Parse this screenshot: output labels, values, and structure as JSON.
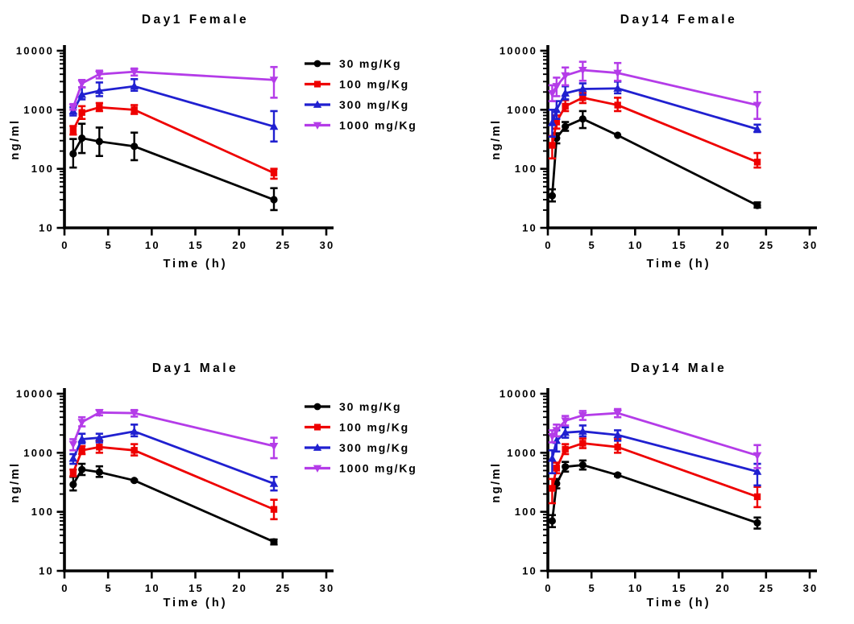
{
  "figure": {
    "background": "#ffffff",
    "axis_color": "#000000",
    "legend_labels": [
      "30 mg/Kg",
      "100 mg/Kg",
      "300 mg/Kg",
      "1000 mg/Kg"
    ],
    "series_colors": [
      "#000000",
      "#EE0000",
      "#2020D0",
      "#B43CE8"
    ]
  },
  "chart_data": [
    {
      "key": "day1-female",
      "type": "line",
      "title": "Day1 Female",
      "xlabel": "Time (h)",
      "ylabel": "ng/ml",
      "x_ticks": [
        0,
        5,
        10,
        15,
        20,
        25,
        30
      ],
      "y_ticks": [
        10,
        100,
        1000,
        10000
      ],
      "xlim": [
        0,
        30
      ],
      "ylim": [
        10,
        10000
      ],
      "y_scale": "log",
      "grid": false,
      "legend_visible": true,
      "legend_position": "right-of-plot",
      "series": [
        {
          "name": "30 mg/Kg",
          "color": "#000000",
          "marker": "circle",
          "x": [
            1,
            2,
            4,
            8,
            24
          ],
          "y": [
            180,
            330,
            290,
            240,
            30
          ],
          "err_lo": [
            105,
            185,
            165,
            140,
            20
          ],
          "err_hi": [
            320,
            580,
            500,
            410,
            47
          ]
        },
        {
          "name": "100 mg/Kg",
          "color": "#EE0000",
          "marker": "square",
          "x": [
            1,
            2,
            4,
            8,
            24
          ],
          "y": [
            450,
            900,
            1100,
            1000,
            85
          ],
          "err_lo": [
            380,
            700,
            950,
            850,
            68
          ],
          "err_hi": [
            530,
            1150,
            1300,
            1200,
            100
          ]
        },
        {
          "name": "300 mg/Kg",
          "color": "#2020D0",
          "marker": "triangle-up",
          "x": [
            1,
            2,
            4,
            8,
            24
          ],
          "y": [
            950,
            1800,
            2100,
            2500,
            520
          ],
          "err_lo": [
            800,
            1500,
            1700,
            2100,
            290
          ],
          "err_hi": [
            1100,
            2400,
            2900,
            3300,
            950
          ]
        },
        {
          "name": "1000 mg/Kg",
          "color": "#B43CE8",
          "marker": "triangle-down",
          "x": [
            1,
            2,
            4,
            8,
            24
          ],
          "y": [
            1100,
            2800,
            4000,
            4400,
            3200
          ],
          "err_lo": [
            1000,
            2400,
            3400,
            3800,
            1600
          ],
          "err_hi": [
            1250,
            3200,
            4600,
            5000,
            5300
          ]
        }
      ]
    },
    {
      "key": "day14-female",
      "type": "line",
      "title": "Day14 Female",
      "xlabel": "Time (h)",
      "ylabel": "ng/ml",
      "x_ticks": [
        0,
        5,
        10,
        15,
        20,
        25,
        30
      ],
      "y_ticks": [
        10,
        100,
        1000,
        10000
      ],
      "xlim": [
        0,
        30
      ],
      "ylim": [
        10,
        10000
      ],
      "y_scale": "log",
      "grid": false,
      "legend_visible": false,
      "legend_position": "none",
      "series": [
        {
          "name": "30 mg/Kg",
          "color": "#000000",
          "marker": "circle",
          "x": [
            0.5,
            1,
            2,
            4,
            8,
            24
          ],
          "y": [
            35,
            330,
            520,
            700,
            370,
            24
          ],
          "err_lo": [
            28,
            270,
            440,
            490,
            370,
            22
          ],
          "err_hi": [
            45,
            400,
            620,
            950,
            370,
            27
          ]
        },
        {
          "name": "100 mg/Kg",
          "color": "#EE0000",
          "marker": "square",
          "x": [
            0.5,
            1,
            2,
            4,
            8,
            24
          ],
          "y": [
            250,
            620,
            1150,
            1600,
            1200,
            130
          ],
          "err_lo": [
            150,
            480,
            950,
            1300,
            950,
            105
          ],
          "err_hi": [
            360,
            800,
            1450,
            1900,
            1600,
            185
          ]
        },
        {
          "name": "300 mg/Kg",
          "color": "#2020D0",
          "marker": "triangle-up",
          "x": [
            0.5,
            1,
            2,
            4,
            8,
            24
          ],
          "y": [
            600,
            1000,
            1900,
            2250,
            2300,
            470
          ],
          "err_lo": [
            350,
            700,
            1500,
            1800,
            1900,
            420
          ],
          "err_hi": [
            1000,
            1400,
            2500,
            2800,
            3000,
            560
          ]
        },
        {
          "name": "1000 mg/Kg",
          "color": "#B43CE8",
          "marker": "triangle-down",
          "x": [
            0.5,
            1,
            2,
            4,
            8,
            24
          ],
          "y": [
            1900,
            2500,
            3800,
            4700,
            4200,
            1200
          ],
          "err_lo": [
            1400,
            1700,
            2600,
            3100,
            3100,
            700
          ],
          "err_hi": [
            2600,
            3500,
            5200,
            6500,
            6200,
            2000
          ]
        }
      ]
    },
    {
      "key": "day1-male",
      "type": "line",
      "title": "Day1 Male",
      "xlabel": "Time (h)",
      "ylabel": "ng/ml",
      "x_ticks": [
        0,
        5,
        10,
        15,
        20,
        25,
        30
      ],
      "y_ticks": [
        10,
        100,
        1000,
        10000
      ],
      "xlim": [
        0,
        30
      ],
      "ylim": [
        10,
        10000
      ],
      "y_scale": "log",
      "grid": false,
      "legend_visible": true,
      "legend_position": "right-of-plot",
      "series": [
        {
          "name": "30 mg/Kg",
          "color": "#000000",
          "marker": "circle",
          "x": [
            1,
            2,
            4,
            8,
            24
          ],
          "y": [
            290,
            520,
            470,
            340,
            31
          ],
          "err_lo": [
            230,
            420,
            390,
            330,
            28
          ],
          "err_hi": [
            390,
            650,
            590,
            350,
            34
          ]
        },
        {
          "name": "100 mg/Kg",
          "color": "#EE0000",
          "marker": "square",
          "x": [
            1,
            2,
            4,
            8,
            24
          ],
          "y": [
            460,
            1100,
            1250,
            1100,
            110
          ],
          "err_lo": [
            400,
            950,
            1000,
            900,
            75
          ],
          "err_hi": [
            520,
            1300,
            1550,
            1400,
            160
          ]
        },
        {
          "name": "300 mg/Kg",
          "color": "#2020D0",
          "marker": "triangle-up",
          "x": [
            1,
            2,
            4,
            8,
            24
          ],
          "y": [
            800,
            1700,
            1800,
            2300,
            300
          ],
          "err_lo": [
            650,
            1450,
            1500,
            1900,
            230
          ],
          "err_hi": [
            950,
            2100,
            2100,
            3000,
            390
          ]
        },
        {
          "name": "1000 mg/Kg",
          "color": "#B43CE8",
          "marker": "triangle-down",
          "x": [
            1,
            2,
            4,
            8,
            24
          ],
          "y": [
            1400,
            3300,
            4800,
            4700,
            1300
          ],
          "err_lo": [
            1100,
            2800,
            4300,
            4100,
            810
          ],
          "err_hi": [
            1700,
            4000,
            5300,
            5300,
            1800
          ]
        }
      ]
    },
    {
      "key": "day14-male",
      "type": "line",
      "title": "Day14 Male",
      "xlabel": "Time (h)",
      "ylabel": "ng/ml",
      "x_ticks": [
        0,
        5,
        10,
        15,
        20,
        25,
        30
      ],
      "y_ticks": [
        10,
        100,
        1000,
        10000
      ],
      "xlim": [
        0,
        30
      ],
      "ylim": [
        10,
        10000
      ],
      "y_scale": "log",
      "grid": false,
      "legend_visible": false,
      "legend_position": "none",
      "series": [
        {
          "name": "30 mg/Kg",
          "color": "#000000",
          "marker": "circle",
          "x": [
            0.5,
            1,
            2,
            4,
            8,
            24
          ],
          "y": [
            70,
            300,
            580,
            620,
            420,
            65
          ],
          "err_lo": [
            55,
            250,
            480,
            520,
            400,
            52
          ],
          "err_hi": [
            88,
            360,
            700,
            740,
            440,
            80
          ]
        },
        {
          "name": "100 mg/Kg",
          "color": "#EE0000",
          "marker": "square",
          "x": [
            0.5,
            1,
            2,
            4,
            8,
            24
          ],
          "y": [
            250,
            550,
            1150,
            1450,
            1250,
            180
          ],
          "err_lo": [
            140,
            450,
            950,
            1200,
            1000,
            120
          ],
          "err_hi": [
            360,
            680,
            1400,
            1750,
            1700,
            265
          ]
        },
        {
          "name": "300 mg/Kg",
          "color": "#2020D0",
          "marker": "triangle-up",
          "x": [
            0.5,
            1,
            2,
            4,
            8,
            24
          ],
          "y": [
            800,
            1600,
            2200,
            2300,
            2000,
            480
          ],
          "err_lo": [
            450,
            1050,
            1800,
            1900,
            1600,
            280
          ],
          "err_hi": [
            1100,
            2400,
            2700,
            2900,
            2400,
            650
          ]
        },
        {
          "name": "1000 mg/Kg",
          "color": "#B43CE8",
          "marker": "triangle-down",
          "x": [
            0.5,
            1,
            2,
            4,
            8,
            24
          ],
          "y": [
            1900,
            2400,
            3500,
            4300,
            4700,
            900
          ],
          "err_lo": [
            1500,
            1900,
            2900,
            3600,
            4000,
            550
          ],
          "err_hi": [
            2400,
            3000,
            4200,
            5100,
            5500,
            1350
          ]
        }
      ]
    }
  ]
}
